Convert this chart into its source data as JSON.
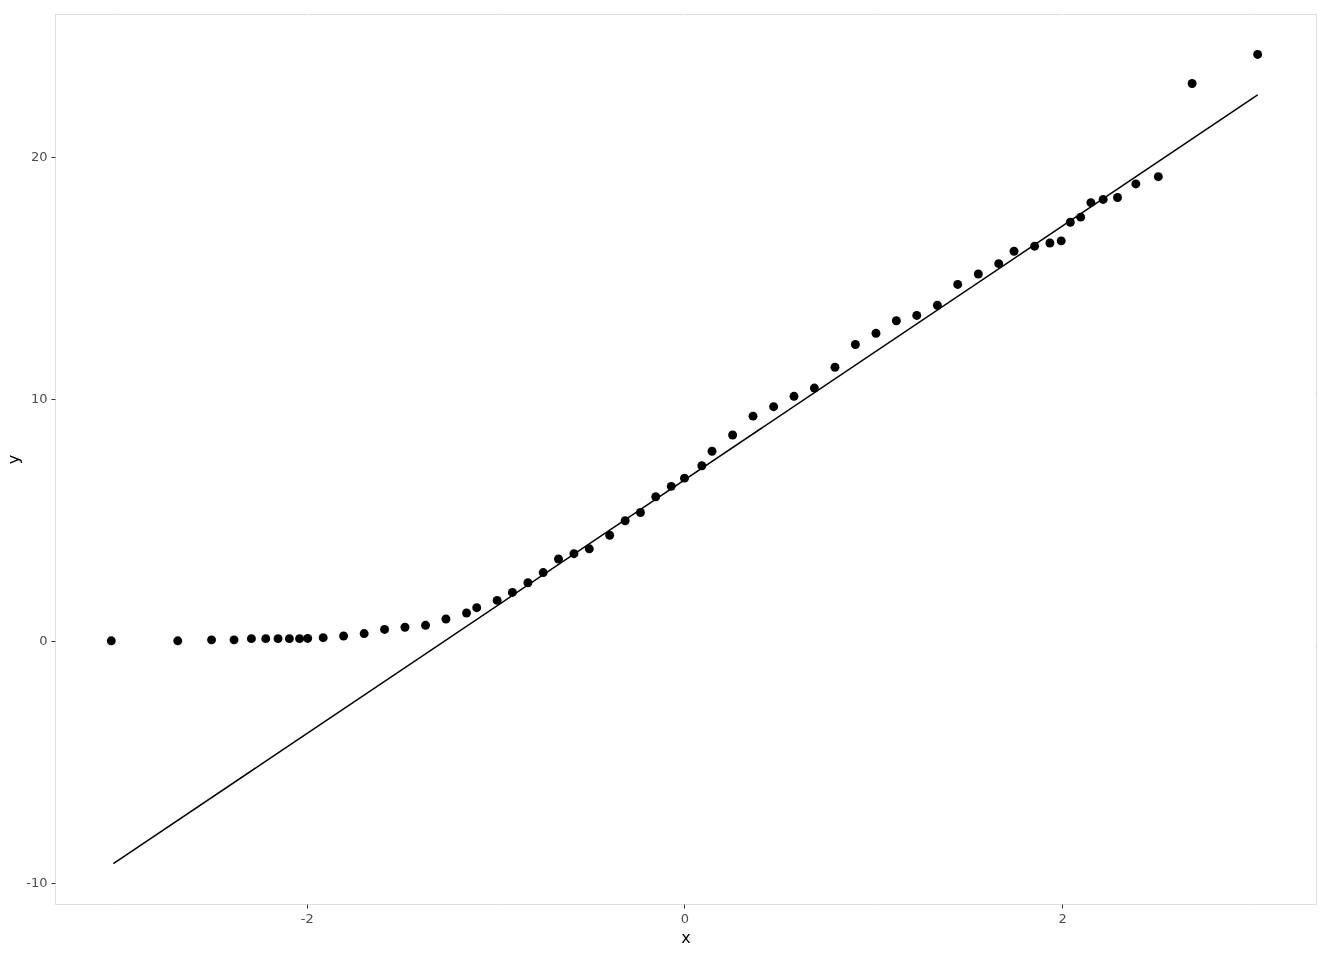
{
  "chart_data": {
    "type": "scatter",
    "xlabel": "x",
    "ylabel": "y",
    "xlim": [
      -3.333,
      3.344
    ],
    "ylim": [
      -10.87,
      25.89
    ],
    "xticks": [
      {
        "value": -3,
        "label": null
      },
      -2,
      {
        "value": -1,
        "label": null
      },
      0,
      {
        "value": 1,
        "label": null
      },
      2,
      {
        "value": 3,
        "label": null
      }
    ],
    "yticks": [
      -10,
      {
        "value": -5,
        "label": null
      },
      0,
      {
        "value": 5,
        "label": null
      },
      10,
      {
        "value": 15,
        "label": null
      },
      20,
      {
        "value": 25,
        "label": null
      }
    ],
    "grid": true,
    "marker": "circle",
    "series": [
      {
        "color": "#000000",
        "x": [
          -3.035,
          -2.683,
          -2.504,
          -2.385,
          -2.293,
          -2.217,
          -2.152,
          -2.092,
          -2.038,
          -1.995,
          -1.913,
          -1.805,
          -1.696,
          -1.588,
          -1.48,
          -1.371,
          -1.263,
          -1.154,
          -1.1,
          -0.992,
          -0.911,
          -0.829,
          -0.748,
          -0.667,
          -0.585,
          -0.504,
          -0.396,
          -0.314,
          -0.233,
          -0.152,
          -0.07,
          0.0,
          0.092,
          0.146,
          0.255,
          0.363,
          0.472,
          0.58,
          0.688,
          0.797,
          0.905,
          1.014,
          1.122,
          1.23,
          1.339,
          1.447,
          1.556,
          1.664,
          1.745,
          1.854,
          1.935,
          1.995,
          2.043,
          2.098,
          2.152,
          2.217,
          2.293,
          2.39,
          2.509,
          2.688,
          3.035
        ],
        "values": [
          0.0,
          0.0,
          0.04,
          0.04,
          0.09,
          0.09,
          0.09,
          0.09,
          0.09,
          0.1,
          0.13,
          0.2,
          0.3,
          0.47,
          0.56,
          0.64,
          0.9,
          1.15,
          1.37,
          1.67,
          2.0,
          2.4,
          2.82,
          3.38,
          3.6,
          3.8,
          4.36,
          4.96,
          5.3,
          5.95,
          6.38,
          6.72,
          7.23,
          7.83,
          8.5,
          9.28,
          9.67,
          10.1,
          10.44,
          11.3,
          12.24,
          12.7,
          13.22,
          13.44,
          13.86,
          14.72,
          15.15,
          15.58,
          16.09,
          16.3,
          16.43,
          16.52,
          17.29,
          17.5,
          18.1,
          18.23,
          18.31,
          18.87,
          19.17,
          23.02,
          24.22
        ]
      },
      {
        "type": "line",
        "color": "#000000",
        "marker": "none",
        "x": [
          -3.024,
          3.035
        ],
        "values": [
          -9.2,
          22.55
        ]
      }
    ]
  }
}
